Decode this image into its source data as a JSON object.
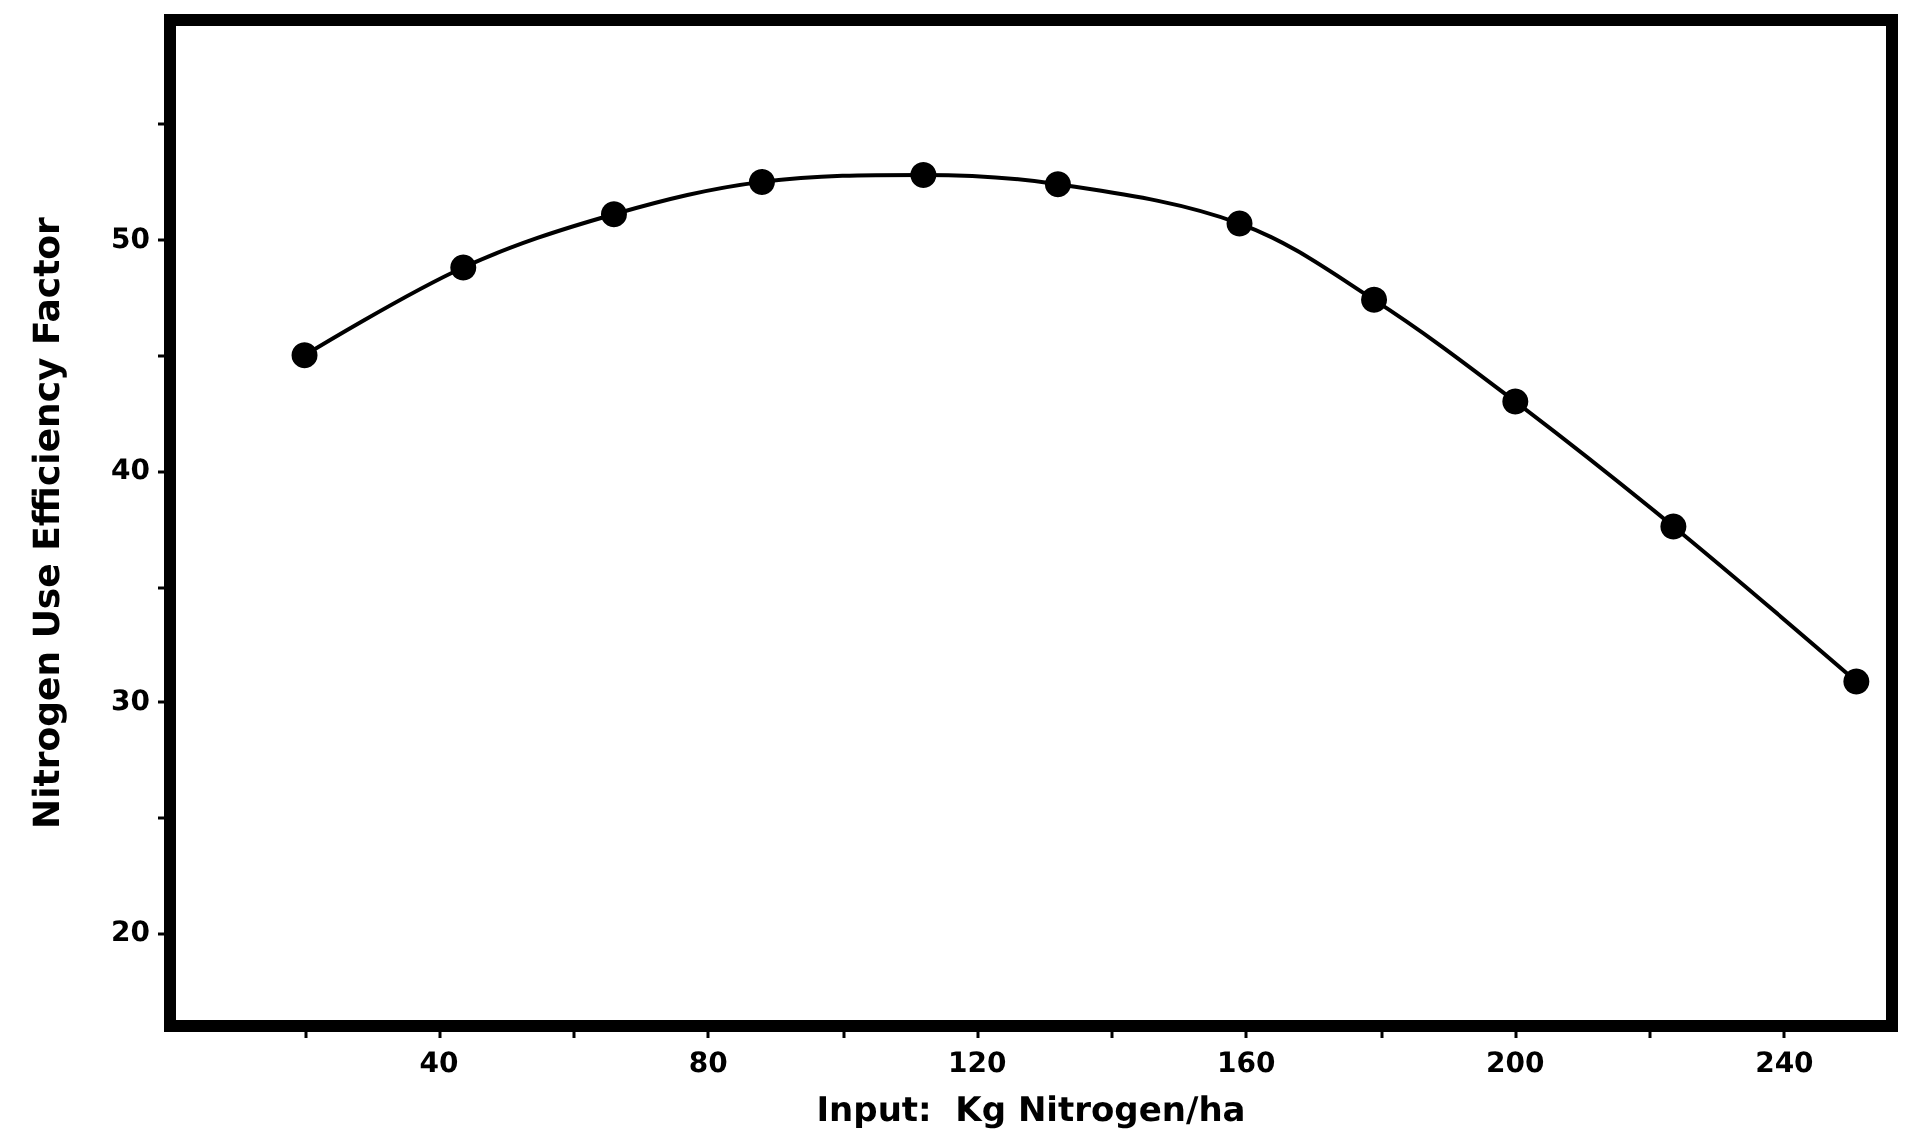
{
  "chart_data": {
    "type": "line",
    "xlabel": "Input:  Kg Nitrogen/ha",
    "ylabel": "Nitrogen Use Efficiency Factor",
    "x": [
      20,
      43.6,
      66,
      88,
      112,
      132,
      159,
      179,
      200,
      223.5,
      250.7
    ],
    "series": [
      {
        "color": "#000000",
        "values": [
          45,
          48.8,
          51.1,
          52.5,
          52.8,
          52.4,
          50.7,
          47.4,
          43,
          37.6,
          30.9
        ]
      }
    ],
    "xlim": [
      0,
      256
    ],
    "xticks": [
      {
        "value": 20,
        "label": null
      },
      40,
      {
        "value": 60,
        "label": null
      },
      80,
      {
        "value": 100,
        "label": null
      },
      120,
      {
        "value": 140,
        "label": null
      },
      160,
      {
        "value": 180,
        "label": null
      },
      200,
      {
        "value": 220,
        "label": null
      },
      240
    ],
    "ylim": [
      16,
      59.5
    ],
    "yticks": [
      20,
      {
        "value": 25,
        "label": null
      },
      30,
      {
        "value": 35,
        "label": null
      },
      40,
      {
        "value": 45,
        "label": null
      },
      50,
      {
        "value": 55,
        "label": null
      }
    ],
    "grid": false,
    "marker": "circle",
    "line_style": "solid"
  }
}
